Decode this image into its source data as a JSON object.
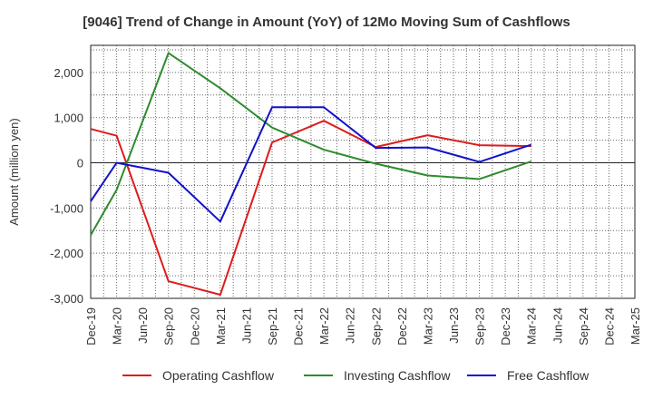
{
  "chart_data": {
    "type": "line",
    "title": "[9046]  Trend of Change in Amount (YoY) of 12Mo Moving Sum of Cashflows",
    "xlabel": "",
    "ylabel": "Amount (million yen)",
    "ylim": [
      -3000,
      2600
    ],
    "yticks": [
      -3000,
      -2000,
      -1000,
      0,
      1000,
      2000
    ],
    "ytick_labels": [
      "-3,000",
      "-2,000",
      "-1,000",
      "0",
      "1,000",
      "2,000"
    ],
    "categories": [
      "Dec-19",
      "Mar-20",
      "Jun-20",
      "Sep-20",
      "Dec-20",
      "Mar-21",
      "Jun-21",
      "Sep-21",
      "Dec-21",
      "Mar-22",
      "Jun-22",
      "Sep-22",
      "Dec-22",
      "Mar-23",
      "Jun-23",
      "Sep-23",
      "Dec-23",
      "Mar-24",
      "Jun-24",
      "Sep-24",
      "Dec-24",
      "Mar-25"
    ],
    "grid": true,
    "legend_position": "bottom",
    "series": [
      {
        "name": "Operating Cashflow",
        "color": "#dd1c1c",
        "values": [
          750,
          600,
          null,
          -2620,
          null,
          -2920,
          null,
          450,
          null,
          930,
          null,
          350,
          null,
          610,
          null,
          390,
          null,
          370,
          null,
          null,
          null,
          null
        ]
      },
      {
        "name": "Investing Cashflow",
        "color": "#2e8b2e",
        "values": [
          -1600,
          -600,
          null,
          2430,
          null,
          1650,
          null,
          780,
          null,
          290,
          null,
          -20,
          null,
          -280,
          null,
          -360,
          null,
          30,
          null,
          null,
          null,
          null
        ]
      },
      {
        "name": "Free Cashflow",
        "color": "#1111cc",
        "values": [
          -850,
          0,
          null,
          -220,
          null,
          -1300,
          null,
          1230,
          null,
          1230,
          null,
          330,
          null,
          340,
          null,
          20,
          null,
          400,
          null,
          null,
          null,
          null
        ]
      }
    ]
  }
}
